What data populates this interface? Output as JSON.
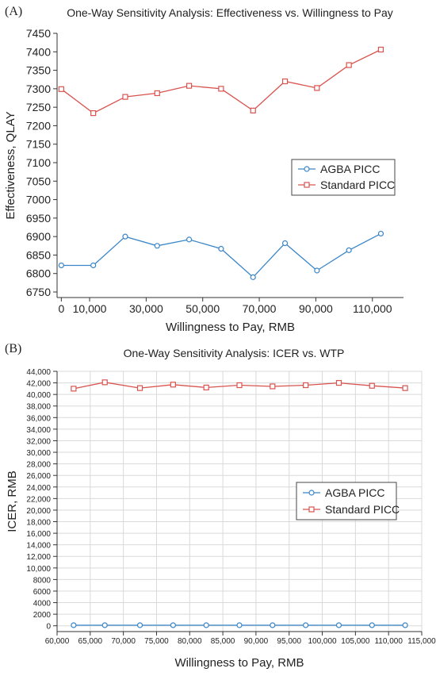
{
  "colors": {
    "agba": "#3a86c8",
    "standard": "#d9534f",
    "grid": "#d9d9d9",
    "axis": "#333333"
  },
  "chart_data": [
    {
      "panel": "(A)",
      "type": "line",
      "title": "One-Way Sensitivity Analysis: Effectiveness vs. Willingness to Pay",
      "xlabel": "Willingness to Pay, RMB",
      "ylabel": "Effectiveness, QLAY",
      "xlim": [
        -1500,
        121000
      ],
      "ylim": [
        6735,
        7450
      ],
      "xticks": [
        0,
        10000,
        30000,
        50000,
        70000,
        90000,
        110000
      ],
      "xtick_labels": [
        "0",
        "10,000",
        "30,000",
        "50,000",
        "70,000",
        "90,000",
        "110,000"
      ],
      "yticks": [
        6750,
        6800,
        6850,
        6900,
        6950,
        7000,
        7050,
        7100,
        7150,
        7200,
        7250,
        7300,
        7350,
        7400,
        7450
      ],
      "ytick_labels": [
        "6750",
        "6800",
        "6850",
        "6900",
        "6950",
        "7000",
        "7050",
        "7100",
        "7150",
        "7200",
        "7250",
        "7300",
        "7350",
        "7400",
        "7450"
      ],
      "grid": false,
      "legend": "center-right",
      "x": [
        0,
        11300,
        22600,
        33900,
        45200,
        56500,
        67800,
        79100,
        90400,
        101700,
        113000
      ],
      "series": [
        {
          "name": "AGBA PICC",
          "marker": "circle",
          "values": [
            6822,
            6822,
            6900,
            6875,
            6892,
            6867,
            6790,
            6882,
            6808,
            6863,
            6908
          ]
        },
        {
          "name": "Standard PICC",
          "marker": "square",
          "values": [
            7299,
            7234,
            7278,
            7288,
            7308,
            7300,
            7241,
            7320,
            7302,
            7364,
            7406
          ]
        }
      ]
    },
    {
      "panel": "(B)",
      "type": "line",
      "title": "One-Way Sensitivity Analysis: ICER vs. WTP",
      "xlabel": "Willingness to Pay, RMB",
      "ylabel": "ICER, RMB",
      "xlim": [
        60000,
        115000
      ],
      "ylim": [
        -1000,
        44000
      ],
      "xticks": [
        60000,
        65000,
        70000,
        75000,
        80000,
        85000,
        90000,
        95000,
        100000,
        105000,
        110000,
        115000
      ],
      "xtick_labels": [
        "60,000",
        "65,000",
        "70,000",
        "75,000",
        "80,000",
        "85,000",
        "90,000",
        "95,000",
        "100,000",
        "105,000",
        "110,000",
        "115,000"
      ],
      "yticks": [
        0,
        2000,
        4000,
        6000,
        8000,
        10000,
        12000,
        14000,
        16000,
        18000,
        20000,
        22000,
        24000,
        26000,
        28000,
        30000,
        32000,
        34000,
        36000,
        38000,
        40000,
        42000,
        44000
      ],
      "ytick_labels": [
        "0",
        "2000",
        "4000",
        "6000",
        "8000",
        "10,000",
        "12,000",
        "14,000",
        "16,000",
        "18,000",
        "20,000",
        "22,000",
        "24,000",
        "26,000",
        "28,000",
        "30,000",
        "32,000",
        "34,000",
        "36,000",
        "38,000",
        "40,000",
        "42,000",
        "44,000"
      ],
      "grid": true,
      "legend": "center-right",
      "x": [
        62500,
        67200,
        72500,
        77500,
        82500,
        87500,
        92500,
        97500,
        102500,
        107500,
        112500
      ],
      "series": [
        {
          "name": "AGBA PICC",
          "marker": "circle",
          "values": [
            100,
            100,
            100,
            100,
            100,
            100,
            100,
            100,
            100,
            100,
            100
          ]
        },
        {
          "name": "Standard PICC",
          "marker": "square",
          "values": [
            41000,
            42100,
            41100,
            41700,
            41200,
            41600,
            41400,
            41600,
            42000,
            41500,
            41100
          ]
        }
      ]
    }
  ]
}
